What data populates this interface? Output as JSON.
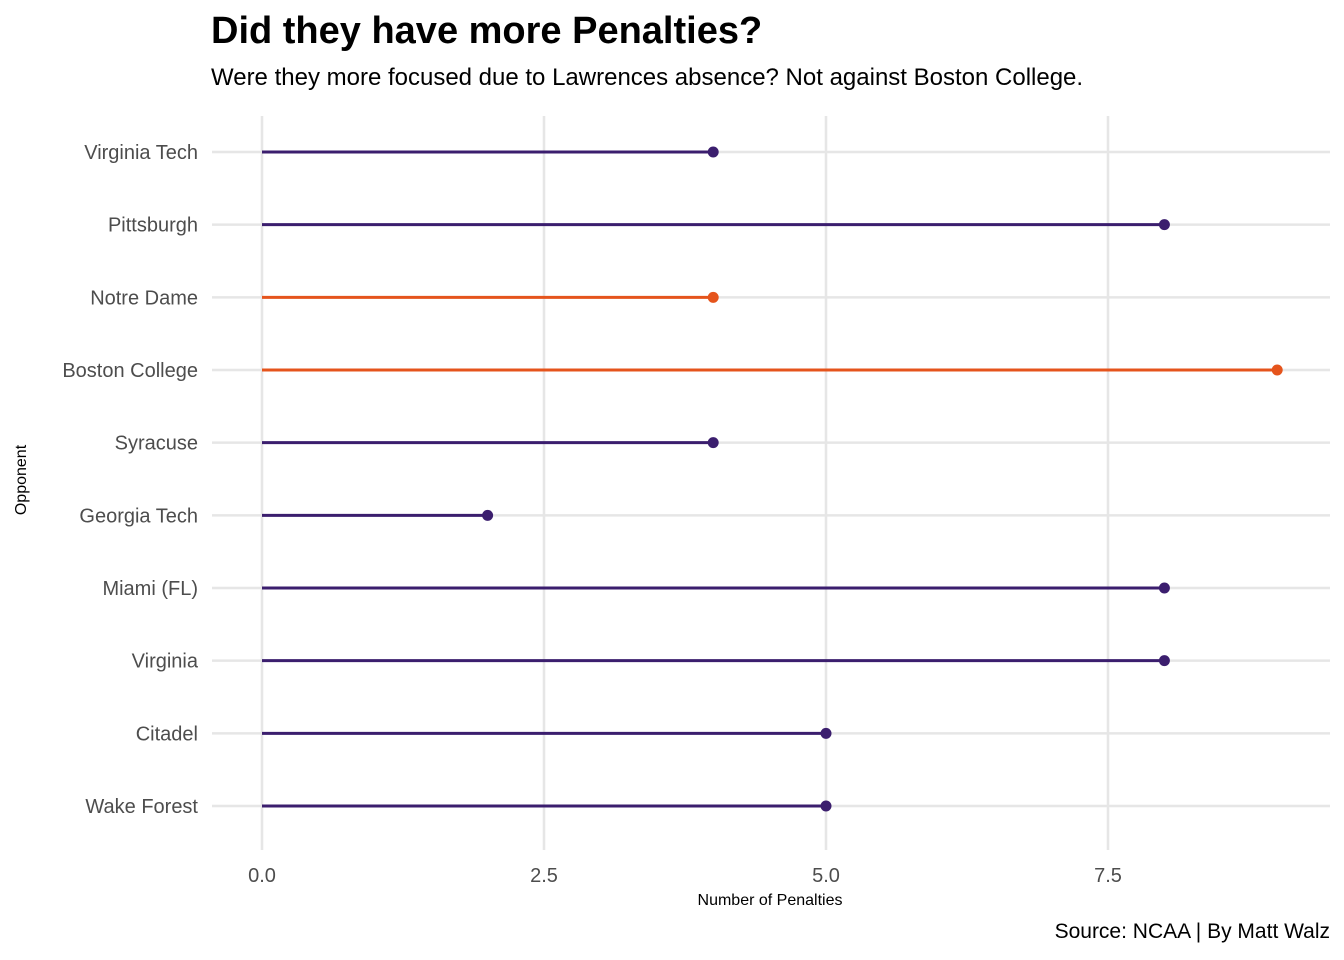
{
  "chart_data": {
    "type": "lollipop",
    "title": "Did they have more Penalties?",
    "subtitle": "Were they more focused due to Lawrences absence? Not against Boston College.",
    "caption": "Source: NCAA | By Matt Walz",
    "xlabel": "Number of Penalties",
    "ylabel": "Opponent",
    "xlim": [
      0,
      9
    ],
    "xticks": [
      "0.0",
      "2.5",
      "5.0",
      "7.5"
    ],
    "xtick_values": [
      0,
      2.5,
      5,
      7.5
    ],
    "grid": true,
    "colors": {
      "default": "#3b1e6e",
      "highlight": "#e5541c"
    },
    "categories": [
      "Virginia Tech",
      "Pittsburgh",
      "Notre Dame",
      "Boston College",
      "Syracuse",
      "Georgia Tech",
      "Miami (FL)",
      "Virginia",
      "Citadel",
      "Wake Forest"
    ],
    "values": [
      4,
      8,
      4,
      9,
      4,
      2,
      8,
      8,
      5,
      5
    ],
    "highlighted": [
      "Notre Dame",
      "Boston College"
    ]
  }
}
